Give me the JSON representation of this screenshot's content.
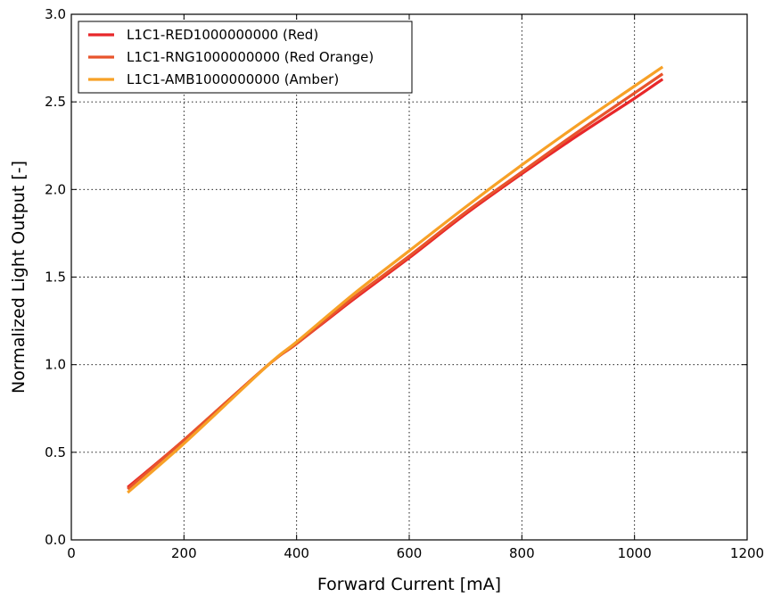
{
  "chart_data": {
    "type": "line",
    "title": "",
    "xlabel": "Forward Current [mA]",
    "ylabel": "Normalized Light Output [-]",
    "xlim": [
      0,
      1200
    ],
    "ylim": [
      0.0,
      3.0
    ],
    "xticks": [
      0,
      200,
      400,
      600,
      800,
      1000,
      1200
    ],
    "xtick_labels": [
      "0",
      "200",
      "400",
      "600",
      "800",
      "1000",
      "1200"
    ],
    "yticks": [
      0.0,
      0.5,
      1.0,
      1.5,
      2.0,
      2.5,
      3.0
    ],
    "ytick_labels": [
      "0.0",
      "0.5",
      "1.0",
      "1.5",
      "2.0",
      "2.5",
      "3.0"
    ],
    "grid": true,
    "legend_position": "top-left",
    "series": [
      {
        "name": "L1C1-RED1000000000 (Red)",
        "color": "#e8272a",
        "x": [
          100,
          200,
          350,
          400,
          500,
          600,
          700,
          800,
          900,
          1000,
          1050
        ],
        "y": [
          0.3,
          0.57,
          1.0,
          1.12,
          1.37,
          1.61,
          1.86,
          2.09,
          2.31,
          2.52,
          2.63
        ]
      },
      {
        "name": "L1C1-RNG1000000000 (Red Orange)",
        "color": "#e8542c",
        "x": [
          100,
          200,
          350,
          400,
          500,
          600,
          700,
          800,
          900,
          1000,
          1050
        ],
        "y": [
          0.29,
          0.57,
          1.0,
          1.12,
          1.38,
          1.62,
          1.87,
          2.1,
          2.33,
          2.55,
          2.66
        ]
      },
      {
        "name": "L1C1-AMB1000000000 (Amber)",
        "color": "#f7a127",
        "x": [
          100,
          200,
          350,
          400,
          500,
          600,
          700,
          800,
          900,
          1000,
          1050
        ],
        "y": [
          0.27,
          0.55,
          1.0,
          1.13,
          1.4,
          1.65,
          1.9,
          2.14,
          2.37,
          2.59,
          2.7
        ]
      }
    ]
  }
}
